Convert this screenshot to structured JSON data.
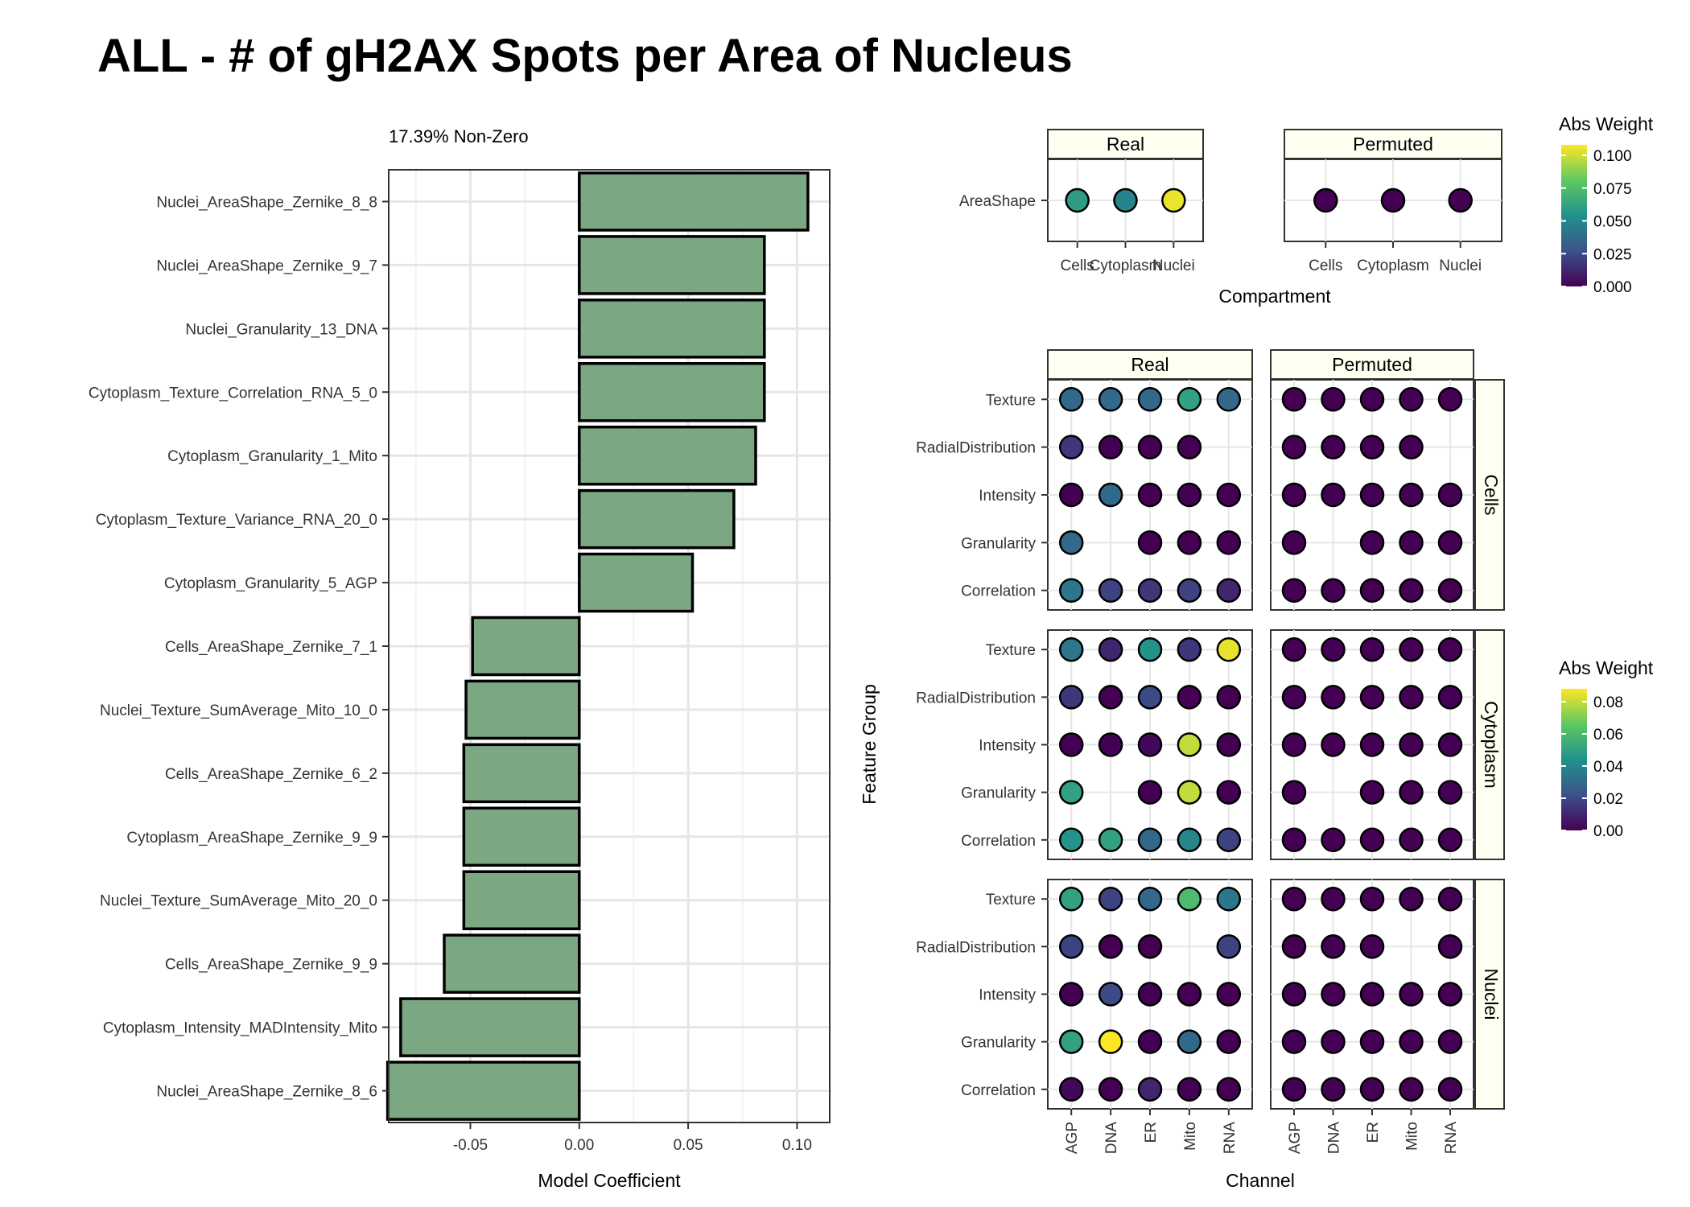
{
  "title": "ALL - # of gH2AX Spots per Area of Nucleus",
  "colors": {
    "bar_fill": "#7ba883",
    "panel_border": "#000000",
    "grid": "#e6e6e6",
    "strip_fill": "#fffff2",
    "viridis": [
      "#440154",
      "#3b528b",
      "#21918c",
      "#5ec962",
      "#fde725"
    ]
  },
  "chart_data": [
    {
      "type": "bar",
      "orientation": "horizontal",
      "subtitle": "17.39% Non-Zero",
      "xlabel": "Model Coefficient",
      "ylabel": "",
      "xlim": [
        -0.0875,
        0.115
      ],
      "xticks": [
        -0.05,
        0.0,
        0.05,
        0.1
      ],
      "xtick_labels": [
        "-0.05",
        "0.00",
        "0.05",
        "0.10"
      ],
      "grid": true,
      "categories": [
        "Nuclei_AreaShape_Zernike_8_8",
        "Nuclei_AreaShape_Zernike_9_7",
        "Nuclei_Granularity_13_DNA",
        "Cytoplasm_Texture_Correlation_RNA_5_0",
        "Cytoplasm_Granularity_1_Mito",
        "Cytoplasm_Texture_Variance_RNA_20_0",
        "Cytoplasm_Granularity_5_AGP",
        "Cells_AreaShape_Zernike_7_1",
        "Nuclei_Texture_SumAverage_Mito_10_0",
        "Cells_AreaShape_Zernike_6_2",
        "Cytoplasm_AreaShape_Zernike_9_9",
        "Nuclei_Texture_SumAverage_Mito_20_0",
        "Cells_AreaShape_Zernike_9_9",
        "Cytoplasm_Intensity_MADIntensity_Mito",
        "Nuclei_AreaShape_Zernike_8_6"
      ],
      "values": [
        0.105,
        0.085,
        0.085,
        0.085,
        0.081,
        0.071,
        0.052,
        -0.049,
        -0.052,
        -0.053,
        -0.053,
        -0.053,
        -0.062,
        -0.082,
        -0.088
      ]
    },
    {
      "type": "scatter",
      "description_kind": "dot-grid",
      "xlabel": "Compartment",
      "x_categories": [
        "Cells",
        "Cytoplasm",
        "Nuclei"
      ],
      "y_categories": [
        "AreaShape"
      ],
      "facets": [
        "Real",
        "Permuted"
      ],
      "legend": {
        "title": "Abs Weight",
        "ticks": [
          "0.000",
          "0.025",
          "0.050",
          "0.075",
          "0.100"
        ],
        "range": [
          0,
          0.108
        ],
        "placement": "right"
      },
      "values": {
        "Real": [
          [
            0.06,
            0.048,
            0.105
          ]
        ],
        "Permuted": [
          [
            0.0,
            0.0,
            0.0
          ]
        ]
      }
    },
    {
      "type": "scatter",
      "description_kind": "dot-grid",
      "xlabel": "Channel",
      "ylabel": "Feature Group",
      "x_categories": [
        "AGP",
        "DNA",
        "ER",
        "Mito",
        "RNA"
      ],
      "y_categories": [
        "Texture",
        "RadialDistribution",
        "Intensity",
        "Granularity",
        "Correlation"
      ],
      "col_facets": [
        "Real",
        "Permuted"
      ],
      "row_facets": [
        "Cells",
        "Cytoplasm",
        "Nuclei"
      ],
      "legend": {
        "title": "Abs Weight",
        "ticks": [
          "0.00",
          "0.02",
          "0.04",
          "0.06",
          "0.08"
        ],
        "range": [
          0,
          0.088
        ],
        "placement": "right"
      },
      "values": {
        "Cells": {
          "Real": [
            [
              0.03,
              0.03,
              0.03,
              0.05,
              0.03
            ],
            [
              0.015,
              0.0,
              0.0,
              0.0,
              null
            ],
            [
              0.0,
              0.03,
              0.0,
              0.0,
              0.0
            ],
            [
              0.03,
              null,
              0.0,
              0.0,
              0.0
            ],
            [
              0.035,
              0.018,
              0.015,
              0.018,
              0.01
            ]
          ],
          "Permuted": [
            [
              0.0,
              0.0,
              0.0,
              0.0,
              0.0
            ],
            [
              0.0,
              0.0,
              0.0,
              0.0,
              null
            ],
            [
              0.0,
              0.0,
              0.0,
              0.0,
              0.0
            ],
            [
              0.0,
              null,
              0.0,
              0.0,
              0.0
            ],
            [
              0.0,
              0.0,
              0.0,
              0.0,
              0.0
            ]
          ]
        },
        "Cytoplasm": {
          "Real": [
            [
              0.035,
              0.01,
              0.045,
              0.015,
              0.085
            ],
            [
              0.015,
              0.0,
              0.02,
              0.0,
              0.0
            ],
            [
              0.0,
              0.0,
              0.002,
              0.08,
              0.0
            ],
            [
              0.05,
              null,
              0.0,
              0.08,
              0.0
            ],
            [
              0.045,
              0.05,
              0.03,
              0.04,
              0.018
            ]
          ],
          "Permuted": [
            [
              0.0,
              0.0,
              0.0,
              0.0,
              0.0
            ],
            [
              0.0,
              0.0,
              0.0,
              0.0,
              0.0
            ],
            [
              0.0,
              0.0,
              0.0,
              0.0,
              0.0
            ],
            [
              0.0,
              null,
              0.0,
              0.0,
              0.0
            ],
            [
              0.0,
              0.0,
              0.0,
              0.0,
              0.0
            ]
          ]
        },
        "Nuclei": {
          "Real": [
            [
              0.05,
              0.018,
              0.03,
              0.06,
              0.035
            ],
            [
              0.018,
              0.0,
              0.0,
              null,
              0.018
            ],
            [
              0.0,
              0.02,
              0.0,
              0.0,
              0.0
            ],
            [
              0.05,
              0.088,
              0.0,
              0.03,
              0.0
            ],
            [
              0.002,
              0.0,
              0.01,
              0.0,
              0.0
            ]
          ],
          "Permuted": [
            [
              0.0,
              0.0,
              0.0,
              0.0,
              0.0
            ],
            [
              0.0,
              0.0,
              0.0,
              null,
              0.0
            ],
            [
              0.0,
              0.0,
              0.0,
              0.0,
              0.0
            ],
            [
              0.0,
              0.0,
              0.0,
              0.0,
              0.0
            ],
            [
              0.0,
              0.0,
              0.0,
              0.0,
              0.0
            ]
          ]
        }
      }
    }
  ]
}
